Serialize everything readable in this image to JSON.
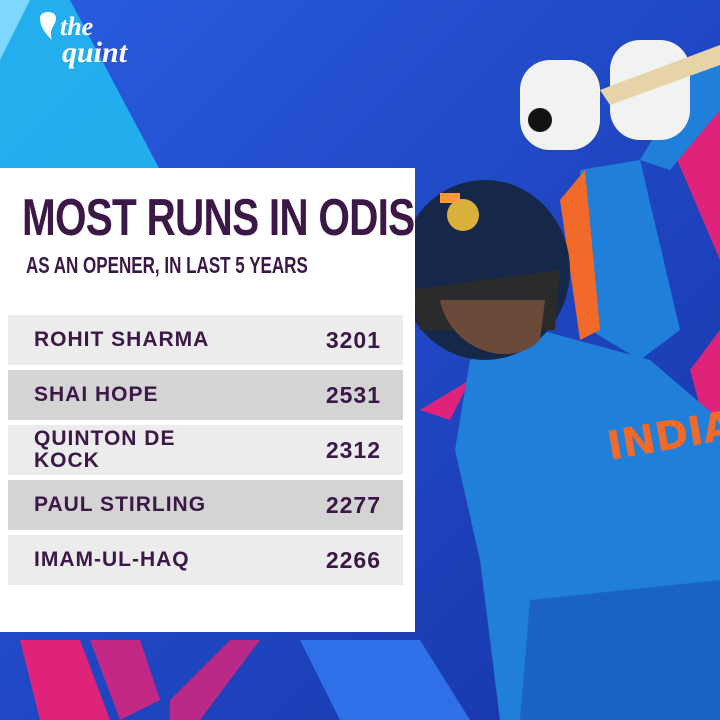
{
  "brand": {
    "top": "the",
    "bottom": "quint"
  },
  "header": {
    "title": "MOST RUNS IN ODIS",
    "subtitle": "AS AN OPENER, IN LAST 5 YEARS"
  },
  "table": {
    "rows": [
      [
        "ROHIT SHARMA",
        3201
      ],
      [
        "SHAI HOPE",
        2531
      ],
      [
        "QUINTON DE KOCK",
        2312
      ],
      [
        "PAUL STIRLING",
        2277
      ],
      [
        "IMAM-UL-HAQ",
        2266
      ]
    ]
  }
}
